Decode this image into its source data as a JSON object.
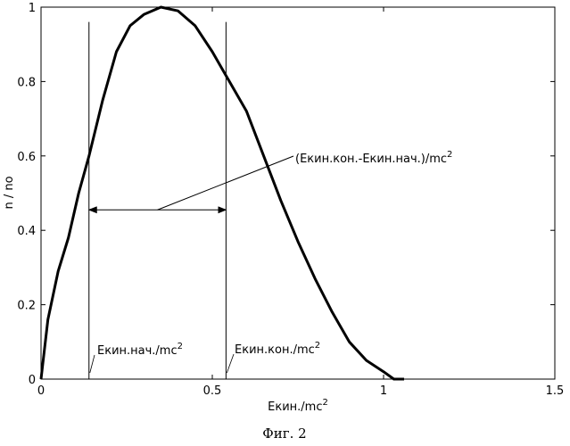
{
  "chart_data": {
    "type": "line",
    "title": "",
    "xlabel": "Екин./mc",
    "xlabel_sup": "2",
    "ylabel": "n / no",
    "xlim": [
      0,
      1.5
    ],
    "ylim": [
      0,
      1.0
    ],
    "xticks": [
      0,
      0.5,
      1,
      1.5
    ],
    "xtick_labels": [
      "0",
      "0.5",
      "1",
      "1.5"
    ],
    "yticks": [
      0,
      0.2,
      0.4,
      0.6,
      0.8,
      1.0
    ],
    "ytick_labels": [
      "0",
      "0.2",
      "0.4",
      "0.6",
      "0.8",
      "1"
    ],
    "grid": false,
    "series": [
      {
        "x": [
          0,
          0.02,
          0.05,
          0.08,
          0.11,
          0.14,
          0.18,
          0.22,
          0.26,
          0.3,
          0.35,
          0.4,
          0.45,
          0.5,
          0.55,
          0.6,
          0.65,
          0.7,
          0.75,
          0.8,
          0.85,
          0.9,
          0.95,
          1.0,
          1.03,
          1.06
        ],
        "y": [
          0,
          0.16,
          0.29,
          0.38,
          0.5,
          0.6,
          0.75,
          0.88,
          0.95,
          0.98,
          1.0,
          0.99,
          0.95,
          0.88,
          0.8,
          0.72,
          0.6,
          0.48,
          0.37,
          0.27,
          0.18,
          0.1,
          0.05,
          0.02,
          0.0,
          0.0
        ]
      }
    ],
    "vlines": [
      0.14,
      0.54
    ],
    "vline_top": 0.96,
    "span_arrow": {
      "x1": 0.14,
      "x2": 0.54,
      "y": 0.455
    },
    "annotations": {
      "start": {
        "text": "Екин.нач./mc",
        "sup": "2"
      },
      "end": {
        "text": "Екин.кон./mc",
        "sup": "2"
      },
      "diff": {
        "text": "(Екин.кон.-Екин.нач.)/mc",
        "sup": "2"
      }
    }
  },
  "caption": "Фиг. 2"
}
